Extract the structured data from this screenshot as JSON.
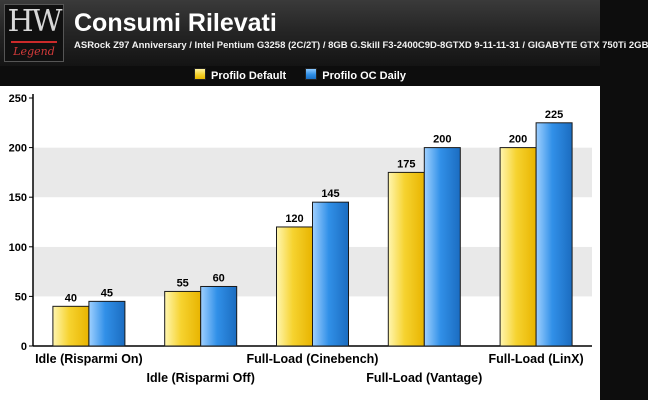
{
  "logo": {
    "mark": "HW",
    "word": "Legend"
  },
  "chart_data": {
    "type": "bar",
    "title": "Consumi Rilevati",
    "subtitle": "ASRock Z97 Anniversary / Intel Pentium G3258 (2C/2T) / 8GB G.Skill F3-2400C9D-8GTXD 9-11-11-31 / GIGABYTE GTX 750Ti 2GB",
    "categories": [
      "Idle (Risparmi On)",
      "Idle (Risparmi Off)",
      "Full-Load (Cinebench)",
      "Full-Load (Vantage)",
      "Full-Load (LinX)"
    ],
    "series": [
      {
        "name": "Profilo Default",
        "values": [
          40,
          55,
          120,
          175,
          200
        ],
        "color": "#f5d22e"
      },
      {
        "name": "Profilo OC Daily",
        "values": [
          45,
          60,
          145,
          200,
          225
        ],
        "color": "#2f8fe6"
      }
    ],
    "ylim": [
      0,
      250
    ],
    "yticks": [
      0,
      50,
      100,
      150,
      200,
      250
    ],
    "grid": true,
    "legend_position": "top-center"
  },
  "colors": {
    "background": "#0d0d0d",
    "plot_band": "#e9e9e9",
    "default_series": "#f5d22e",
    "oc_series": "#2f8fe6"
  }
}
